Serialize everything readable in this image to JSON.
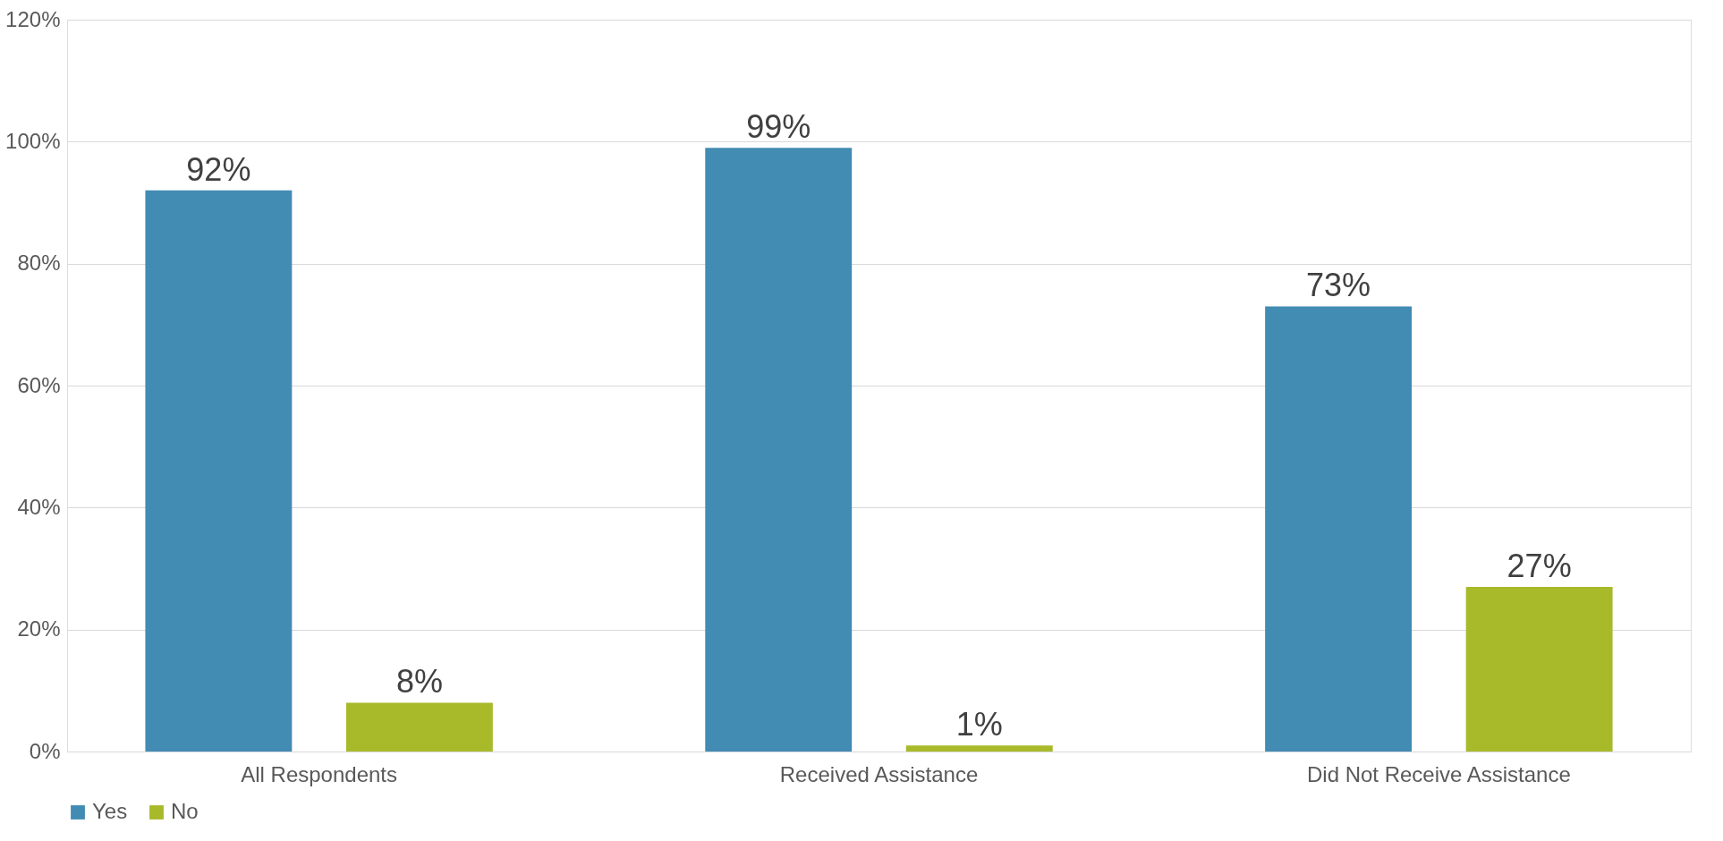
{
  "chart_data": {
    "type": "bar",
    "categories": [
      "All Respondents",
      "Received Assistance",
      "Did Not Receive Assistance"
    ],
    "series": [
      {
        "name": "Yes",
        "color": "#428bb3",
        "values": [
          92,
          99,
          73
        ],
        "value_labels": [
          "92%",
          "99%",
          "73%"
        ]
      },
      {
        "name": "No",
        "color": "#a8b92a",
        "values": [
          8,
          1,
          27
        ],
        "value_labels": [
          "8%",
          "1%",
          "27%"
        ]
      }
    ],
    "ylim": [
      0,
      120
    ],
    "yticks": [
      {
        "value": 0,
        "label": "0%"
      },
      {
        "value": 20,
        "label": "20%"
      },
      {
        "value": 40,
        "label": "40%"
      },
      {
        "value": 60,
        "label": "60%"
      },
      {
        "value": 80,
        "label": "80%"
      },
      {
        "value": 100,
        "label": "100%"
      },
      {
        "value": 120,
        "label": "120%"
      }
    ],
    "grid": "y",
    "legend": "bottom"
  }
}
